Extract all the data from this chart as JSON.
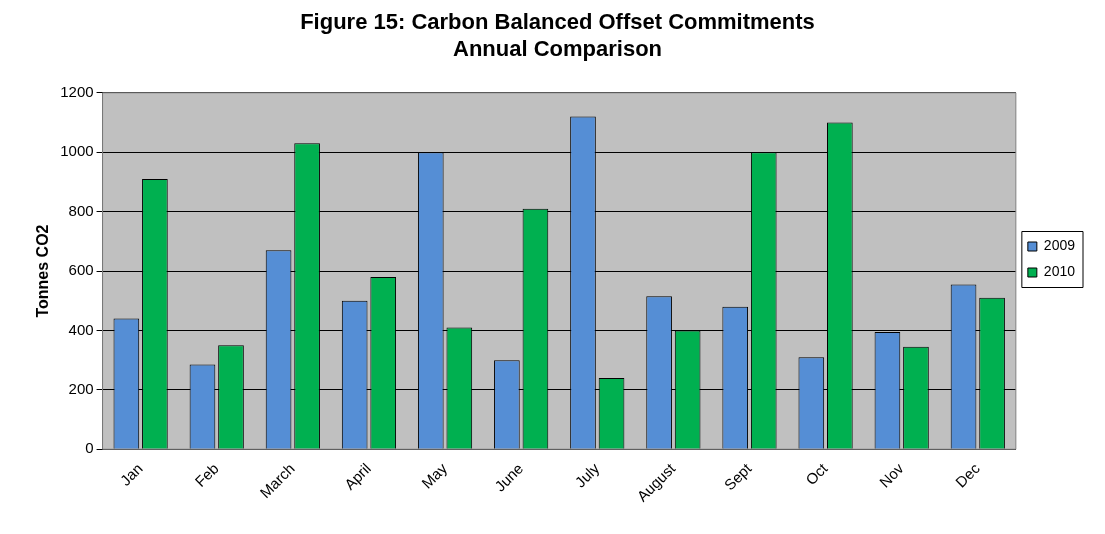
{
  "chart_data": {
    "type": "bar",
    "title": "Figure 15: Carbon Balanced Offset Commitments\nAnnual Comparison",
    "ylabel": "Tonnes CO2",
    "categories": [
      "Jan",
      "Feb",
      "March",
      "April",
      "May",
      "June",
      "July",
      "August",
      "Sept",
      "Oct",
      "Nov",
      "Dec"
    ],
    "series": [
      {
        "name": "2009",
        "color": "#558ed5",
        "values": [
          440,
          285,
          670,
          500,
          1000,
          300,
          1120,
          515,
          480,
          310,
          395,
          555
        ]
      },
      {
        "name": "2010",
        "color": "#00b050",
        "values": [
          910,
          350,
          1030,
          580,
          410,
          810,
          240,
          400,
          1000,
          1100,
          345,
          510
        ]
      }
    ],
    "ylim": [
      0,
      1200
    ],
    "yticks": [
      0,
      200,
      400,
      600,
      800,
      1000,
      1200
    ],
    "grid": "y",
    "legend": "right"
  }
}
